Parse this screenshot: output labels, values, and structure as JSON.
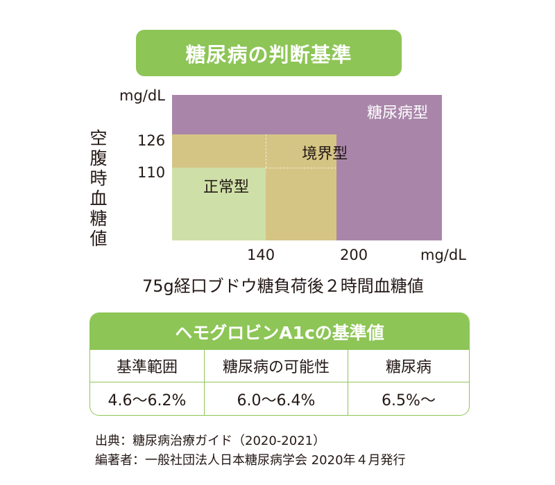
{
  "title": "糖尿病の判断基準",
  "chart_data": {
    "type": "heatmap",
    "title": "糖尿病の判断基準",
    "ylabel": "空腹時血糖値",
    "xlabel": "75g経口ブドウ糖負荷後２時間血糖値",
    "y_unit": "mg/dL",
    "x_unit": "mg/dL",
    "x_range": [
      60,
      290
    ],
    "y_range": [
      75,
      145
    ],
    "x_ticks": [
      140,
      200
    ],
    "y_ticks": [
      110,
      126
    ],
    "regions": [
      {
        "label": "糖尿病型",
        "x_min": 60,
        "x_max": 290,
        "y_min": 75,
        "y_max": 145,
        "color": "#a986a9"
      },
      {
        "label": "境界型",
        "x_min": 60,
        "x_max": 200,
        "y_min": 75,
        "y_max": 126,
        "color": "#d5c585"
      },
      {
        "label": "正常型",
        "x_min": 60,
        "x_max": 140,
        "y_min": 75,
        "y_max": 110,
        "color": "#cee0a7"
      }
    ],
    "guide_color": "#f2ecd0"
  },
  "hba1c": {
    "title": "ヘモグロビンA1cの基準値",
    "headers": [
      "基準範囲",
      "糖尿病の可能性",
      "糖尿病"
    ],
    "values": [
      "4.6～6.2%",
      "6.0～6.4%",
      "6.5%～"
    ]
  },
  "source": {
    "line1": "出典：糖尿病治療ガイド（2020-2021）",
    "line2": "編著者：一般社団法人日本糖尿病学会 2020年４月発行"
  },
  "colors": {
    "accent": "#8dc556",
    "text": "#231815"
  }
}
